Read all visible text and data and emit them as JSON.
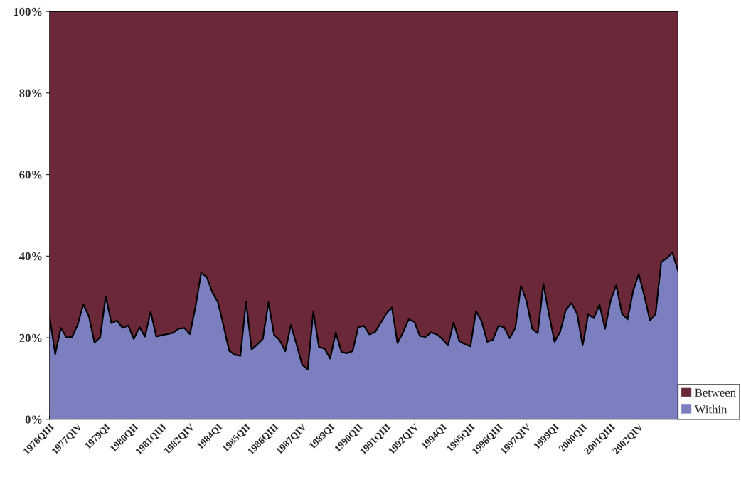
{
  "chart_data": {
    "type": "area",
    "stacked": true,
    "categories": [
      "1976QIII",
      null,
      null,
      null,
      null,
      "1977QIV",
      null,
      null,
      null,
      null,
      "1979QI",
      null,
      null,
      null,
      null,
      "1980QII",
      null,
      null,
      null,
      null,
      "1981QIII",
      null,
      null,
      null,
      null,
      "1982QIV",
      null,
      null,
      null,
      null,
      "1984QI",
      null,
      null,
      null,
      null,
      "1985QII",
      null,
      null,
      null,
      null,
      "1986QIII",
      null,
      null,
      null,
      null,
      "1987QIV",
      null,
      null,
      null,
      null,
      "1989QI",
      null,
      null,
      null,
      null,
      "1990QII",
      null,
      null,
      null,
      null,
      "1991QIII",
      null,
      null,
      null,
      null,
      "1992QIV",
      null,
      null,
      null,
      null,
      "1994QI",
      null,
      null,
      null,
      null,
      "1995QII",
      null,
      null,
      null,
      null,
      "1996QIII",
      null,
      null,
      null,
      null,
      "1997QIV",
      null,
      null,
      null,
      null,
      "1999QI",
      null,
      null,
      null,
      null,
      "2000QII",
      null,
      null,
      null,
      null,
      "2001QIII",
      null,
      null,
      null,
      null,
      "2002QIV",
      null,
      null,
      null,
      null,
      null,
      null,
      null
    ],
    "series": [
      {
        "name": "Within",
        "color": "#7b7fc0",
        "values": [
          25,
          16,
          22.4,
          20.1,
          20.2,
          23.2,
          28.2,
          25.2,
          18.8,
          20.1,
          30.2,
          23.6,
          24.2,
          22.4,
          23,
          19.7,
          22.6,
          20.3,
          26.4,
          20.3,
          20.6,
          20.9,
          21.2,
          22.2,
          22.4,
          20.9,
          27.6,
          35.9,
          34.9,
          31.1,
          28.7,
          22.9,
          16.8,
          15.8,
          15.6,
          28.9,
          17.1,
          18.3,
          19.7,
          28.7,
          20.7,
          19.4,
          16.7,
          23.1,
          18.4,
          13.4,
          12.2,
          26.5,
          17.7,
          17.3,
          14.9,
          21.3,
          16.5,
          16.2,
          16.7,
          22.6,
          22.9,
          20.8,
          21.4,
          23.6,
          25.9,
          27.4,
          18.7,
          21.3,
          24.5,
          23.9,
          20.4,
          20.2,
          21.3,
          20.8,
          19.7,
          18.1,
          23.7,
          19.2,
          18.4,
          17.9,
          26.5,
          24,
          19,
          19.5,
          22.9,
          22.6,
          19.9,
          22.4,
          32.7,
          29,
          22.2,
          21.1,
          33.2,
          25.7,
          19,
          21.5,
          26.8,
          28.5,
          25.9,
          18.1,
          25.7,
          24.8,
          28.1,
          22.2,
          29.2,
          32.9,
          25.9,
          24.5,
          31.5,
          35.6,
          30.3,
          24.2,
          25.8,
          38.5,
          39.5,
          40.8,
          36.4
        ]
      },
      {
        "name": "Between",
        "color": "#6b2838",
        "values": [
          75,
          84,
          77.6,
          79.9,
          79.8,
          76.8,
          71.8,
          74.8,
          81.2,
          79.9,
          69.8,
          76.4,
          75.8,
          77.6,
          77,
          80.3,
          77.4,
          79.7,
          73.6,
          79.7,
          79.4,
          79.1,
          78.8,
          77.8,
          77.6,
          79.1,
          72.4,
          64.1,
          65.1,
          68.9,
          71.3,
          77.1,
          83.2,
          84.2,
          84.4,
          71.1,
          82.9,
          81.7,
          80.3,
          71.3,
          79.3,
          80.6,
          83.3,
          76.9,
          81.6,
          86.6,
          87.8,
          73.5,
          82.3,
          82.7,
          85.1,
          78.7,
          83.5,
          83.8,
          83.3,
          77.4,
          77.1,
          79.2,
          78.6,
          76.4,
          74.1,
          72.6,
          81.3,
          78.7,
          75.5,
          76.1,
          79.6,
          79.8,
          78.7,
          79.2,
          80.3,
          81.9,
          76.3,
          80.8,
          81.6,
          82.1,
          73.5,
          76,
          81,
          80.5,
          77.1,
          77.4,
          80.1,
          77.6,
          67.3,
          71,
          77.8,
          78.9,
          66.8,
          74.3,
          81,
          78.5,
          73.2,
          71.5,
          74.1,
          81.9,
          74.3,
          75.2,
          71.9,
          77.8,
          70.8,
          67.1,
          74.1,
          75.5,
          68.5,
          64.4,
          69.7,
          75.8,
          74.2,
          61.5,
          60.5,
          59.2,
          63.6
        ]
      }
    ],
    "ylim": [
      0,
      100
    ],
    "yticks": [
      {
        "value": 0,
        "label": "0%"
      },
      {
        "value": 20,
        "label": "20%"
      },
      {
        "value": 40,
        "label": "40%"
      },
      {
        "value": 60,
        "label": "60%"
      },
      {
        "value": 80,
        "label": "80%"
      },
      {
        "value": 100,
        "label": "100%"
      }
    ],
    "legend": "bottom right",
    "grid": false
  }
}
